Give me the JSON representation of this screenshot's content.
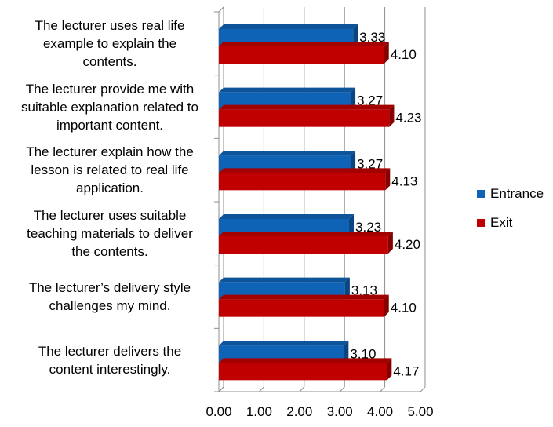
{
  "chart_data": {
    "type": "bar",
    "orientation": "horizontal",
    "title": "",
    "xlabel": "",
    "ylabel": "",
    "xlim": [
      0,
      5
    ],
    "x_ticks": [
      "0.00",
      "1.00",
      "2.00",
      "3.00",
      "4.00",
      "5.00"
    ],
    "grid": true,
    "legend_position": "right",
    "categories": [
      "The lecturer uses real life example to explain the contents.",
      "The lecturer provide me with suitable explanation related to important content.",
      "The lecturer explain how the lesson is related to real life application.",
      "The lecturer uses suitable teaching materials to deliver the contents.",
      "The lecturer’s delivery style challenges my mind.",
      "The lecturer delivers the content interestingly."
    ],
    "series": [
      {
        "name": "Entrance",
        "color": "#0f63b6",
        "values": [
          3.33,
          3.27,
          3.27,
          3.23,
          3.13,
          3.1
        ],
        "labels": [
          "3.33",
          "3.27",
          "3.27",
          "3.23",
          "3.13",
          "3.10"
        ]
      },
      {
        "name": "Exit",
        "color": "#c00000",
        "values": [
          4.1,
          4.23,
          4.13,
          4.2,
          4.1,
          4.17
        ],
        "labels": [
          "4.10",
          "4.23",
          "4.13",
          "4.20",
          "4.10",
          "4.17"
        ]
      }
    ]
  }
}
